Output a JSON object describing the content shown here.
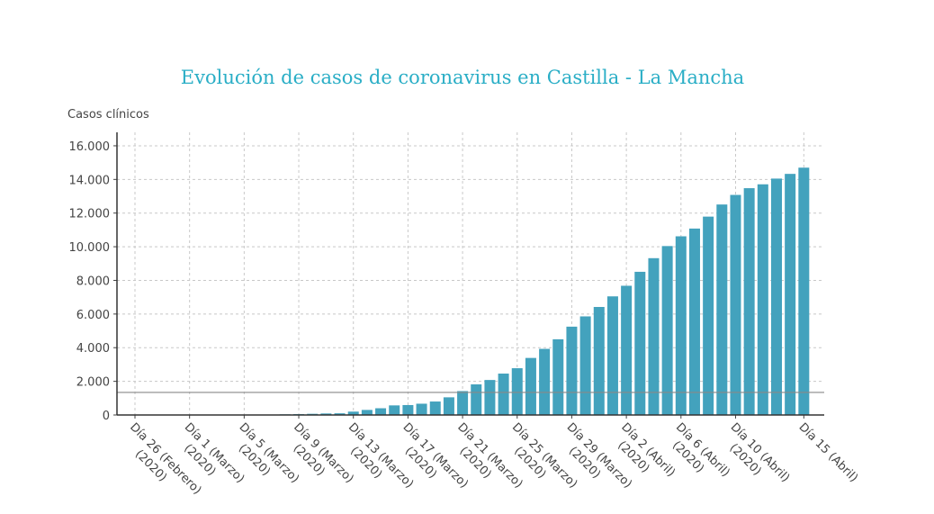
{
  "chart_data": {
    "type": "bar",
    "title": "Evolución de casos de coronavirus en Castilla - La Mancha",
    "y_label": "Casos clínicos",
    "categories": [
      [
        "Día 26 (Febrero)",
        "(2020)"
      ],
      null,
      null,
      null,
      [
        "Día 1 (Marzo)",
        "(2020)"
      ],
      null,
      null,
      null,
      [
        "Día 5 (Marzo)",
        "(2020)"
      ],
      null,
      null,
      null,
      [
        "Día 9 (Marzo)",
        "(2020)"
      ],
      null,
      null,
      null,
      [
        "Día 13 (Marzo)",
        "(2020)"
      ],
      null,
      null,
      null,
      [
        "Día 17 (Marzo)",
        "(2020)"
      ],
      null,
      null,
      null,
      [
        "Día 21 (Marzo)",
        "(2020)"
      ],
      null,
      null,
      null,
      [
        "Día 25 (Marzo)",
        "(2020)"
      ],
      null,
      null,
      null,
      [
        "Día 29 (Marzo)",
        "(2020)"
      ],
      null,
      null,
      null,
      [
        "Día 2 (Abril)",
        "(2020)"
      ],
      null,
      null,
      null,
      [
        "Día 6 (Abril)",
        "(2020)"
      ],
      null,
      null,
      null,
      [
        "Día 10 (Abril)",
        "(2020)"
      ],
      null,
      null,
      null,
      null,
      [
        "Día 15 (Abril)"
      ]
    ],
    "values": [
      0,
      0,
      0,
      0,
      1,
      3,
      6,
      7,
      12,
      17,
      26,
      39,
      51,
      70,
      90,
      100,
      200,
      300,
      400,
      570,
      590,
      670,
      800,
      1050,
      1420,
      1820,
      2080,
      2460,
      2780,
      3390,
      3930,
      4500,
      5250,
      5860,
      6420,
      7050,
      7680,
      8510,
      9320,
      10040,
      10620,
      11080,
      11790,
      12510,
      13080,
      13480,
      13710,
      14050,
      14330,
      14700
    ],
    "color": "#43a2bd",
    "reference_line": 1340,
    "ylim": [
      0,
      16800
    ],
    "yticks": [
      0,
      {
        "value": 2000,
        "label": "2.000"
      },
      {
        "value": 4000,
        "label": "4.000"
      },
      {
        "value": 6000,
        "label": "6.000"
      },
      {
        "value": 8000,
        "label": "8.000"
      },
      {
        "value": 10000,
        "label": "10.000"
      },
      {
        "value": 12000,
        "label": "12.000"
      },
      {
        "value": 14000,
        "label": "14.000"
      },
      {
        "value": 16000,
        "label": "16.000"
      }
    ],
    "grid": true
  }
}
